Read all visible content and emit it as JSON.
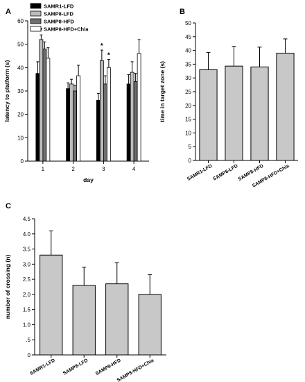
{
  "chart_data": [
    {
      "type": "bar",
      "panel": "A",
      "xlabel": "day",
      "ylabel": "latency to platform (s)",
      "ylim": [
        0,
        60
      ],
      "yticks": [
        0,
        10,
        20,
        30,
        40,
        50,
        60
      ],
      "categories": [
        "1",
        "2",
        "3",
        "4"
      ],
      "legend_position": "top-left",
      "series": [
        {
          "name": "SAMR1-LFD",
          "color": "#000000",
          "values": [
            37.5,
            31.0,
            26.0,
            33.0
          ],
          "errors": [
            5.0,
            2.5,
            3.0,
            4.0
          ]
        },
        {
          "name": "SAMP8-LFD",
          "color": "#bdbdbd",
          "values": [
            52.0,
            33.0,
            43.0,
            38.0
          ],
          "errors": [
            2.0,
            2.0,
            4.5,
            4.5
          ]
        },
        {
          "name": "SAMP8-HFD",
          "color": "#6e6e6e",
          "values": [
            48.0,
            30.0,
            33.0,
            34.0
          ],
          "errors": [
            3.0,
            2.5,
            3.5,
            3.5
          ]
        },
        {
          "name": "SAMP8-HFD+Chia",
          "color": "#ffffff",
          "values": [
            44.0,
            36.5,
            40.0,
            46.0
          ],
          "errors": [
            4.5,
            4.5,
            3.5,
            6.0
          ]
        }
      ],
      "annotations": [
        {
          "text": "*",
          "category": "1",
          "series": "SAMP8-LFD"
        },
        {
          "text": "*",
          "category": "3",
          "series": "SAMP8-LFD"
        },
        {
          "text": "*",
          "category": "3",
          "series": "SAMP8-HFD+Chia"
        }
      ]
    },
    {
      "type": "bar",
      "panel": "B",
      "xlabel": "",
      "ylabel": "time in target zone (s)",
      "ylim": [
        0,
        50
      ],
      "yticks": [
        0,
        5,
        10,
        15,
        20,
        25,
        30,
        35,
        40,
        45,
        50
      ],
      "categories": [
        "SAMR1-LFD",
        "SAMP8-LFD",
        "SAMP8-HFD",
        "SAMP8-HFD+Chia"
      ],
      "series": [
        {
          "values": [
            33.0,
            34.3,
            34.0,
            39.0
          ],
          "errors": [
            6.3,
            7.2,
            7.2,
            5.2
          ],
          "color": "#c8c8c8"
        }
      ]
    },
    {
      "type": "bar",
      "panel": "C",
      "xlabel": "",
      "ylabel": "number of crossing (n)",
      "ylim": [
        0,
        4.5
      ],
      "yticks": [
        "0",
        ".5",
        "1.0",
        "1.5",
        "2.0",
        "2.5",
        "3.0",
        "3.5",
        "4.0",
        "4.5"
      ],
      "categories": [
        "SAMR1-LFD",
        "SAMP8-LFD",
        "SAMP8-HFD",
        "SAMP8-HFD+Chia"
      ],
      "series": [
        {
          "values": [
            3.3,
            2.3,
            2.35,
            2.0
          ],
          "errors": [
            0.8,
            0.6,
            0.7,
            0.65
          ],
          "color": "#c8c8c8"
        }
      ]
    }
  ]
}
